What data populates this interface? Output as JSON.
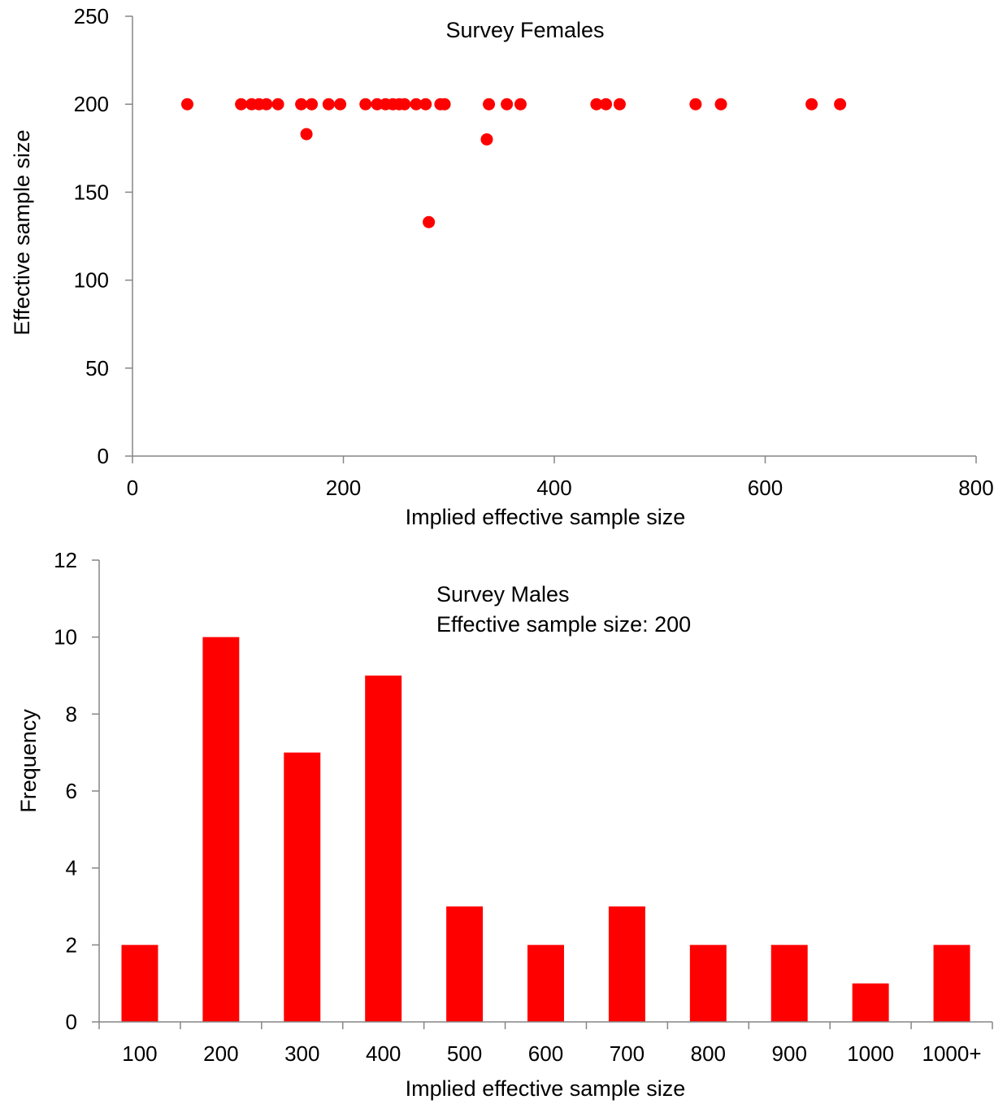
{
  "chart_data": [
    {
      "type": "scatter",
      "title": "Survey Females",
      "xlabel": "Implied effective sample size",
      "ylabel": "Effective sample size",
      "xlim": [
        0,
        800
      ],
      "ylim": [
        0,
        250
      ],
      "xticks": [
        0,
        200,
        400,
        600,
        800
      ],
      "yticks": [
        0,
        50,
        100,
        150,
        200,
        250
      ],
      "grid": false,
      "color": "#ff0000",
      "points": [
        {
          "x": 52,
          "y": 200
        },
        {
          "x": 103,
          "y": 200
        },
        {
          "x": 113,
          "y": 200
        },
        {
          "x": 120,
          "y": 200
        },
        {
          "x": 127,
          "y": 200
        },
        {
          "x": 138,
          "y": 200
        },
        {
          "x": 160,
          "y": 200
        },
        {
          "x": 165,
          "y": 183
        },
        {
          "x": 170,
          "y": 200
        },
        {
          "x": 186,
          "y": 200
        },
        {
          "x": 197,
          "y": 200
        },
        {
          "x": 221,
          "y": 200
        },
        {
          "x": 232,
          "y": 200
        },
        {
          "x": 240,
          "y": 200
        },
        {
          "x": 247,
          "y": 200
        },
        {
          "x": 253,
          "y": 200
        },
        {
          "x": 258,
          "y": 200
        },
        {
          "x": 269,
          "y": 200
        },
        {
          "x": 278,
          "y": 200
        },
        {
          "x": 281,
          "y": 133
        },
        {
          "x": 292,
          "y": 200
        },
        {
          "x": 296,
          "y": 200
        },
        {
          "x": 336,
          "y": 180
        },
        {
          "x": 338,
          "y": 200
        },
        {
          "x": 355,
          "y": 200
        },
        {
          "x": 368,
          "y": 200
        },
        {
          "x": 440,
          "y": 200
        },
        {
          "x": 449,
          "y": 200
        },
        {
          "x": 462,
          "y": 200
        },
        {
          "x": 534,
          "y": 200
        },
        {
          "x": 558,
          "y": 200
        },
        {
          "x": 644,
          "y": 200
        },
        {
          "x": 671,
          "y": 200
        }
      ]
    },
    {
      "type": "bar",
      "title": "Survey Males",
      "subtitle": "Effective sample size: 200",
      "xlabel": "Implied effective sample size",
      "ylabel": "Frequency",
      "ylim": [
        0,
        12
      ],
      "yticks": [
        0,
        2,
        4,
        6,
        8,
        10,
        12
      ],
      "grid": false,
      "color": "#ff0000",
      "categories": [
        "100",
        "200",
        "300",
        "400",
        "500",
        "600",
        "700",
        "800",
        "900",
        "1000",
        "1000+"
      ],
      "values": [
        2,
        10,
        7,
        9,
        3,
        2,
        3,
        2,
        2,
        1,
        2
      ]
    }
  ]
}
